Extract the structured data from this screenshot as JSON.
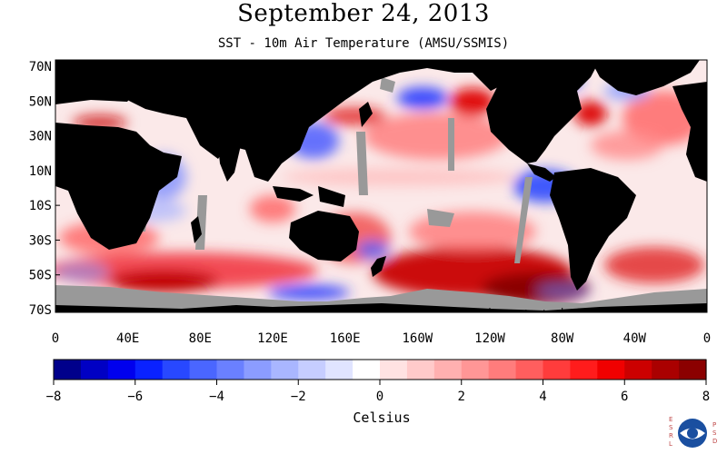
{
  "title": "September 24, 2013",
  "subtitle": "SST - 10m Air Temperature (AMSU/SSMIS)",
  "colorbar": {
    "label": "Celsius",
    "min": -8,
    "max": 8,
    "tick_values": [
      -8,
      -6,
      -4,
      -2,
      0,
      2,
      4,
      6,
      8
    ],
    "tick_labels": [
      "−8",
      "−6",
      "−4",
      "−2",
      "0",
      "2",
      "4",
      "6",
      "8"
    ],
    "colors": [
      "#00008b",
      "#0000c4",
      "#0000ee",
      "#0a22ff",
      "#2848ff",
      "#4a66ff",
      "#6a80ff",
      "#8b9cff",
      "#a9b6ff",
      "#c6cdff",
      "#e0e4ff",
      "#ffffff",
      "#ffe2e2",
      "#ffcaca",
      "#ffb0b0",
      "#ff9696",
      "#ff7c7c",
      "#ff5e5e",
      "#ff3c3c",
      "#ff1c1c",
      "#f00000",
      "#cc0000",
      "#aa0000",
      "#8b0000"
    ]
  },
  "map": {
    "lat_labels": [
      "70N",
      "50N",
      "30N",
      "10N",
      "10S",
      "30S",
      "50S",
      "70S"
    ],
    "lon_labels": [
      "0",
      "40E",
      "80E",
      "120E",
      "160E",
      "160W",
      "120W",
      "80W",
      "40W",
      "0"
    ],
    "land_color": "#000000",
    "missing_color": "#999999"
  },
  "logo": {
    "left_text": "ESRL",
    "right_text": "PSD",
    "center_text": "NOAA"
  }
}
